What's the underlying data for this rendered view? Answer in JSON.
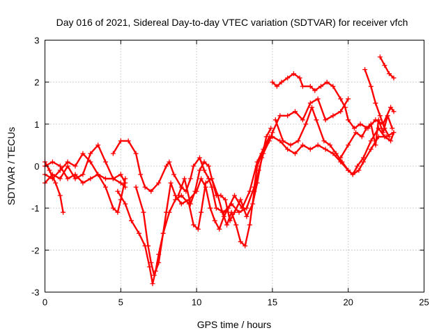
{
  "chart_data": {
    "type": "scatter",
    "title": "Day 016 of 2021, Sidereal Day-to-day VTEC variation (SDTVAR) for receiver vfch",
    "xlabel": "GPS time / hours",
    "ylabel": "SDTVAR / TECUs",
    "xlim": [
      0,
      25
    ],
    "ylim": [
      -3,
      3
    ],
    "xticks": [
      "0",
      "5",
      "10",
      "15",
      "20",
      "25"
    ],
    "yticks": [
      "-3",
      "-2",
      "-1",
      "0",
      "1",
      "2",
      "3"
    ],
    "grid": true,
    "marker": "plus",
    "color": "#ff0000",
    "series": [
      {
        "points": [
          [
            0.0,
            0.1
          ],
          [
            0.3,
            -0.1
          ],
          [
            0.7,
            -0.4
          ],
          [
            1.0,
            -0.7
          ],
          [
            1.2,
            -1.1
          ]
        ]
      },
      {
        "points": [
          [
            0.0,
            -0.4
          ],
          [
            0.5,
            -0.2
          ],
          [
            1.0,
            -0.3
          ],
          [
            1.5,
            0.0
          ],
          [
            2.0,
            -0.3
          ],
          [
            2.5,
            -0.2
          ],
          [
            3.0,
            0.3
          ],
          [
            3.5,
            0.5
          ],
          [
            4.0,
            0.1
          ],
          [
            4.5,
            -0.3
          ],
          [
            5.0,
            -0.4
          ],
          [
            5.3,
            -0.5
          ]
        ]
      },
      {
        "points": [
          [
            0.0,
            0.0
          ],
          [
            0.5,
            0.1
          ],
          [
            1.0,
            0.0
          ],
          [
            1.5,
            -0.3
          ],
          [
            2.0,
            -0.2
          ],
          [
            2.5,
            -0.4
          ],
          [
            3.0,
            -0.3
          ],
          [
            3.5,
            -0.2
          ],
          [
            4.0,
            -0.5
          ],
          [
            4.5,
            -1.0
          ],
          [
            4.8,
            -1.1
          ],
          [
            5.0,
            -0.8
          ],
          [
            5.3,
            -0.3
          ]
        ]
      },
      {
        "points": [
          [
            0.0,
            -0.2
          ],
          [
            0.5,
            -0.3
          ],
          [
            1.0,
            -0.1
          ],
          [
            1.5,
            0.1
          ],
          [
            2.0,
            0.0
          ],
          [
            2.5,
            0.3
          ],
          [
            3.0,
            0.1
          ],
          [
            3.5,
            -0.2
          ],
          [
            4.0,
            -0.3
          ],
          [
            4.5,
            -0.3
          ],
          [
            5.0,
            -0.2
          ],
          [
            5.3,
            -0.4
          ]
        ]
      },
      {
        "points": [
          [
            4.5,
            0.3
          ],
          [
            5.0,
            0.6
          ],
          [
            5.5,
            0.6
          ],
          [
            6.0,
            0.3
          ],
          [
            6.3,
            -0.2
          ],
          [
            6.6,
            -0.5
          ],
          [
            7.0,
            -0.6
          ],
          [
            7.5,
            -0.4
          ],
          [
            8.0,
            0.0
          ],
          [
            8.2,
            0.1
          ],
          [
            8.5,
            -0.2
          ],
          [
            9.0,
            -0.5
          ],
          [
            9.3,
            -0.6
          ],
          [
            9.6,
            -0.3
          ],
          [
            9.8,
            0.0
          ],
          [
            10.2,
            0.2
          ],
          [
            10.5,
            -0.1
          ],
          [
            10.8,
            -0.3
          ],
          [
            11.0,
            -0.5
          ],
          [
            11.3,
            -1.0
          ],
          [
            11.8,
            -1.1
          ],
          [
            12.3,
            -0.9
          ],
          [
            12.8,
            -1.1
          ],
          [
            13.3,
            -1.0
          ],
          [
            13.8,
            -0.5
          ],
          [
            14.0,
            0.0
          ],
          [
            14.3,
            0.3
          ],
          [
            14.7,
            0.6
          ],
          [
            15.0,
            0.7
          ],
          [
            15.5,
            0.6
          ],
          [
            16.0,
            0.4
          ],
          [
            16.5,
            0.3
          ],
          [
            17.0,
            0.5
          ],
          [
            17.5,
            0.4
          ],
          [
            18.0,
            0.5
          ],
          [
            18.5,
            0.4
          ],
          [
            19.0,
            0.3
          ],
          [
            19.5,
            0.1
          ],
          [
            20.0,
            -0.1
          ],
          [
            20.3,
            -0.2
          ],
          [
            20.7,
            -0.1
          ],
          [
            21.0,
            0.1
          ],
          [
            21.5,
            0.4
          ],
          [
            22.0,
            0.7
          ],
          [
            22.5,
            0.7
          ],
          [
            23.0,
            0.8
          ]
        ]
      },
      {
        "points": [
          [
            4.8,
            -0.6
          ],
          [
            5.3,
            -0.9
          ],
          [
            5.7,
            -1.3
          ],
          [
            6.2,
            -1.6
          ],
          [
            6.6,
            -1.9
          ],
          [
            6.9,
            -2.4
          ],
          [
            7.1,
            -2.8
          ],
          [
            7.3,
            -2.5
          ],
          [
            7.5,
            -2.1
          ],
          [
            7.8,
            -1.6
          ],
          [
            8.2,
            -1.1
          ],
          [
            8.6,
            -0.8
          ],
          [
            9.0,
            -0.7
          ],
          [
            9.5,
            -0.9
          ],
          [
            9.8,
            -1.4
          ],
          [
            10.1,
            -1.5
          ],
          [
            10.3,
            -1.1
          ],
          [
            10.6,
            -0.4
          ],
          [
            11.0,
            -0.3
          ],
          [
            11.4,
            -0.7
          ],
          [
            11.7,
            -1.1
          ],
          [
            12.0,
            -1.4
          ],
          [
            12.3,
            -1.1
          ],
          [
            12.6,
            -1.4
          ],
          [
            12.9,
            -1.8
          ],
          [
            13.2,
            -1.9
          ],
          [
            13.5,
            -1.4
          ],
          [
            13.8,
            -0.6
          ],
          [
            14.1,
            -0.1
          ],
          [
            14.4,
            0.3
          ],
          [
            14.8,
            0.6
          ],
          [
            15.0,
            0.8
          ],
          [
            15.5,
            1.2
          ],
          [
            16.0,
            1.2
          ],
          [
            16.5,
            1.3
          ],
          [
            17.0,
            1.1
          ],
          [
            17.5,
            1.5
          ],
          [
            18.0,
            1.6
          ],
          [
            18.5,
            1.1
          ],
          [
            19.0,
            1.2
          ],
          [
            19.5,
            1.3
          ],
          [
            20.0,
            1.6
          ]
        ]
      },
      {
        "points": [
          [
            6.0,
            -0.5
          ],
          [
            6.5,
            -1.1
          ],
          [
            6.8,
            -1.9
          ],
          [
            7.0,
            -2.3
          ],
          [
            7.2,
            -2.6
          ],
          [
            7.5,
            -2.3
          ],
          [
            8.0,
            -1.1
          ],
          [
            8.3,
            -0.4
          ],
          [
            8.6,
            -0.7
          ],
          [
            9.0,
            -0.9
          ],
          [
            9.5,
            -0.8
          ],
          [
            10.0,
            -0.6
          ],
          [
            10.3,
            -0.3
          ],
          [
            10.6,
            -0.5
          ],
          [
            10.9,
            -1.0
          ],
          [
            11.2,
            -1.3
          ],
          [
            11.5,
            -1.5
          ],
          [
            11.8,
            -1.2
          ],
          [
            12.1,
            -1.0
          ],
          [
            12.5,
            -0.7
          ],
          [
            13.0,
            -1.0
          ],
          [
            13.5,
            -0.6
          ],
          [
            14.0,
            0.1
          ],
          [
            14.4,
            0.4
          ],
          [
            14.8,
            0.7
          ]
        ]
      },
      {
        "points": [
          [
            8.8,
            -0.7
          ],
          [
            9.2,
            -0.3
          ],
          [
            9.6,
            -0.9
          ],
          [
            9.9,
            -0.6
          ],
          [
            10.2,
            -0.1
          ],
          [
            10.5,
            0.1
          ],
          [
            10.8,
            0.0
          ],
          [
            11.0,
            -0.3
          ],
          [
            11.3,
            -0.7
          ],
          [
            11.6,
            -0.7
          ],
          [
            11.9,
            -0.8
          ],
          [
            12.2,
            -1.3
          ],
          [
            12.5,
            -1.1
          ],
          [
            12.9,
            -0.8
          ],
          [
            13.3,
            -1.2
          ],
          [
            13.7,
            -0.9
          ],
          [
            14.0,
            -0.4
          ],
          [
            14.3,
            0.2
          ],
          [
            14.6,
            0.7
          ],
          [
            14.9,
            0.9
          ]
        ]
      },
      {
        "points": [
          [
            15.0,
            2.0
          ],
          [
            15.3,
            1.9
          ],
          [
            15.6,
            2.0
          ],
          [
            16.0,
            2.1
          ],
          [
            16.4,
            2.2
          ],
          [
            16.8,
            2.1
          ],
          [
            17.0,
            1.9
          ],
          [
            17.5,
            1.9
          ],
          [
            17.8,
            1.8
          ],
          [
            18.2,
            1.9
          ],
          [
            18.6,
            2.0
          ],
          [
            19.0,
            1.9
          ],
          [
            19.5,
            1.6
          ],
          [
            19.8,
            1.4
          ],
          [
            20.0,
            1.1
          ],
          [
            20.4,
            0.9
          ],
          [
            20.8,
            1.0
          ],
          [
            21.3,
            0.9
          ],
          [
            21.8,
            1.1
          ],
          [
            22.3,
            1.0
          ],
          [
            22.8,
            1.4
          ],
          [
            23.0,
            1.3
          ]
        ]
      },
      {
        "points": [
          [
            15.2,
            1.1
          ],
          [
            15.7,
            0.6
          ],
          [
            16.2,
            0.5
          ],
          [
            16.7,
            0.6
          ],
          [
            17.2,
            1.0
          ],
          [
            17.6,
            1.4
          ],
          [
            17.9,
            1.1
          ],
          [
            18.4,
            0.6
          ],
          [
            18.8,
            0.5
          ],
          [
            19.2,
            0.3
          ],
          [
            19.6,
            0.1
          ],
          [
            20.0,
            -0.1
          ],
          [
            20.3,
            -0.2
          ],
          [
            20.6,
            0.0
          ],
          [
            21.0,
            0.2
          ],
          [
            21.5,
            0.6
          ],
          [
            22.0,
            0.9
          ],
          [
            22.4,
            0.7
          ],
          [
            22.8,
            0.6
          ],
          [
            23.0,
            0.8
          ]
        ]
      },
      {
        "points": [
          [
            19.5,
            0.2
          ],
          [
            20.0,
            0.5
          ],
          [
            20.5,
            0.8
          ],
          [
            20.9,
            0.7
          ],
          [
            21.2,
            0.9
          ],
          [
            21.5,
            1.0
          ],
          [
            21.8,
            0.5
          ],
          [
            22.0,
            1.1
          ],
          [
            22.3,
            0.8
          ],
          [
            22.6,
            1.2
          ],
          [
            22.9,
            0.9
          ]
        ]
      },
      {
        "points": [
          [
            21.1,
            2.3
          ],
          [
            21.5,
            1.9
          ],
          [
            21.8,
            1.5
          ],
          [
            22.1,
            1.2
          ],
          [
            22.4,
            0.9
          ],
          [
            22.7,
            0.7
          ]
        ]
      },
      {
        "points": [
          [
            22.1,
            2.6
          ],
          [
            22.4,
            2.4
          ],
          [
            22.7,
            2.2
          ],
          [
            23.0,
            2.1
          ]
        ]
      }
    ]
  }
}
